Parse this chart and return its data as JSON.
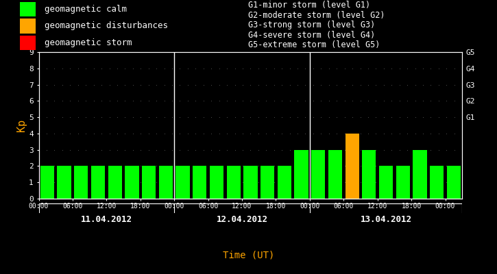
{
  "background_color": "#000000",
  "bar_values": [
    2,
    2,
    2,
    2,
    2,
    2,
    2,
    2,
    2,
    2,
    2,
    2,
    2,
    2,
    2,
    3,
    3,
    3,
    4,
    3,
    2,
    2,
    3,
    2,
    2
  ],
  "bar_colors": [
    "#00ff00",
    "#00ff00",
    "#00ff00",
    "#00ff00",
    "#00ff00",
    "#00ff00",
    "#00ff00",
    "#00ff00",
    "#00ff00",
    "#00ff00",
    "#00ff00",
    "#00ff00",
    "#00ff00",
    "#00ff00",
    "#00ff00",
    "#00ff00",
    "#00ff00",
    "#00ff00",
    "#ffa500",
    "#00ff00",
    "#00ff00",
    "#00ff00",
    "#00ff00",
    "#00ff00",
    "#00ff00"
  ],
  "n_bars": 25,
  "n_per_day": [
    8,
    8,
    9
  ],
  "day_labels": [
    "11.04.2012",
    "12.04.2012",
    "13.04.2012"
  ],
  "day_sep_bars": [
    0,
    8,
    16,
    25
  ],
  "tick_every_n": 2,
  "xtick_labels": [
    "00:00",
    "06:00",
    "12:00",
    "18:00",
    "00:00",
    "06:00",
    "12:00",
    "18:00",
    "00:00",
    "06:00",
    "12:00",
    "18:00",
    "00:00"
  ],
  "ylabel": "Kp",
  "xlabel": "Time (UT)",
  "ylim": [
    0,
    9
  ],
  "yticks": [
    0,
    1,
    2,
    3,
    4,
    5,
    6,
    7,
    8,
    9
  ],
  "right_tick_labels": [
    "G5",
    "G4",
    "G3",
    "G2",
    "G1"
  ],
  "right_tick_pos": [
    9,
    8,
    7,
    6,
    5
  ],
  "legend_items": [
    {
      "label": "geomagnetic calm",
      "color": "#00ff00"
    },
    {
      "label": "geomagnetic disturbances",
      "color": "#ffa500"
    },
    {
      "label": "geomagnetic storm",
      "color": "#ff0000"
    }
  ],
  "legend_right": [
    "G1-minor storm (level G1)",
    "G2-moderate storm (level G2)",
    "G3-strong storm (level G3)",
    "G4-severe storm (level G4)",
    "G5-extreme storm (level G5)"
  ],
  "text_color": "#ffffff",
  "accent_color": "#ffa500",
  "dot_color": "#555555",
  "spine_color": "#ffffff",
  "font_family": "monospace",
  "legend_fontsize": 9,
  "axis_fontsize": 8,
  "xlabel_fontsize": 10,
  "bar_width": 0.82
}
